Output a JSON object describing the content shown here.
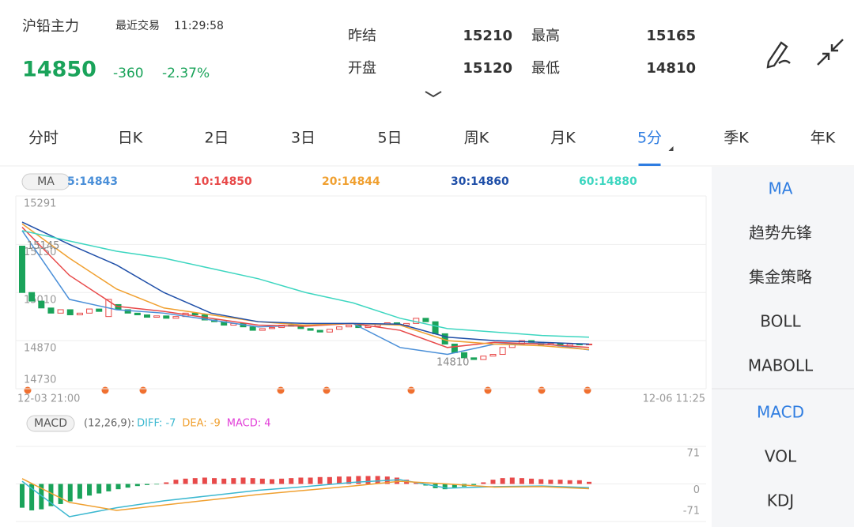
{
  "header": {
    "name": "沪铅主力",
    "recent_label": "最近交易",
    "time": "11:29:58",
    "price": "14850",
    "change": "-360",
    "change_pct": "-2.37%",
    "stats": [
      {
        "label": "昨结",
        "value": "15210"
      },
      {
        "label": "开盘",
        "value": "15120"
      },
      {
        "label": "最高",
        "value": "15165"
      },
      {
        "label": "最低",
        "value": "14810"
      }
    ]
  },
  "tabs": [
    "分时",
    "日K",
    "2日",
    "3日",
    "5日",
    "周K",
    "月K",
    "5分",
    "季K",
    "年K"
  ],
  "active_tab": 7,
  "indicators": {
    "main": [
      "MA",
      "趋势先锋",
      "集金策略",
      "BOLL",
      "MABOLL"
    ],
    "sub": [
      "MACD",
      "VOL",
      "KDJ"
    ],
    "active_color": "#2f7de1"
  },
  "chart_data": [
    {
      "type": "candlestick",
      "badge": "MA",
      "up_color": "#e84a4a",
      "down_color": "#1aa35a",
      "x_start": "12-03 21:00",
      "x_end": "12-06 11:25",
      "ylim": [
        14730,
        15291
      ],
      "yticks": [
        15291,
        15150,
        15010,
        14870,
        14730
      ],
      "grid": true,
      "annotations": [
        {
          "text": "15145",
          "value": 15145
        },
        {
          "text": "14810",
          "value": 14810
        }
      ],
      "open": [
        15145,
        15010,
        14985,
        14965,
        14950,
        14960,
        14945,
        14950,
        14962,
        14940,
        14975,
        14960,
        14950,
        14945,
        14938,
        14942,
        14935,
        14940,
        14950,
        14945,
        14930,
        14925,
        14915,
        14920,
        14910,
        14900,
        14905,
        14908,
        14915,
        14912,
        14905,
        14900,
        14895,
        14903,
        14910,
        14915,
        14908,
        14912,
        14918,
        14922,
        14915,
        14920,
        14935,
        14925,
        14890,
        14860,
        14835,
        14820,
        14815,
        14825,
        14830,
        14850,
        14860,
        14870,
        14865,
        14858,
        14862,
        14855,
        14860,
        14858
      ],
      "close": [
        15010,
        14985,
        14965,
        14950,
        14960,
        14945,
        14950,
        14962,
        14955,
        14990,
        14960,
        14950,
        14945,
        14938,
        14942,
        14935,
        14940,
        14950,
        14945,
        14930,
        14925,
        14915,
        14920,
        14910,
        14900,
        14905,
        14908,
        14915,
        14912,
        14905,
        14900,
        14895,
        14903,
        14910,
        14915,
        14908,
        14912,
        14918,
        14922,
        14915,
        14920,
        14935,
        14925,
        14890,
        14860,
        14835,
        14820,
        14815,
        14825,
        14830,
        14850,
        14860,
        14870,
        14865,
        14858,
        14862,
        14855,
        14860,
        14858,
        14860
      ],
      "series": [
        {
          "name": "5:14843",
          "color": "#4a8fd8",
          "values": [
            15190,
            14990,
            14960,
            14950,
            14930,
            14910,
            14915,
            14920,
            14850,
            14830,
            14860,
            14862,
            14843
          ]
        },
        {
          "name": "10:14850",
          "color": "#e84a4a",
          "values": [
            15200,
            15060,
            14970,
            14955,
            14935,
            14915,
            14912,
            14920,
            14900,
            14850,
            14865,
            14860,
            14850
          ]
        },
        {
          "name": "20:14844",
          "color": "#f0a030",
          "values": [
            15210,
            15110,
            15020,
            14965,
            14945,
            14925,
            14915,
            14920,
            14915,
            14870,
            14860,
            14855,
            14844
          ]
        },
        {
          "name": "30:14860",
          "color": "#1f4fa8",
          "values": [
            15215,
            15150,
            15090,
            15010,
            14950,
            14925,
            14920,
            14920,
            14918,
            14880,
            14870,
            14865,
            14860
          ]
        },
        {
          "name": "60:14880",
          "color": "#3dd6c0",
          "values": [
            15190,
            15160,
            15130,
            15110,
            15080,
            15050,
            15010,
            14980,
            14935,
            14905,
            14895,
            14885,
            14880
          ]
        }
      ]
    },
    {
      "type": "macd",
      "badge": "MACD",
      "params": "(12,26,9):",
      "ylim": [
        -71,
        71
      ],
      "yticks": [
        71,
        0,
        -71
      ],
      "series": [
        {
          "name": "DIFF: -7",
          "color": "#3cb8d0",
          "values": [
            5,
            -62,
            -45,
            -32,
            -22,
            -12,
            -5,
            3,
            8,
            -8,
            -5,
            -4,
            -7
          ]
        },
        {
          "name": "DEA: -9",
          "color": "#f0a030",
          "values": [
            10,
            -35,
            -50,
            -40,
            -30,
            -20,
            -12,
            -4,
            5,
            0,
            -6,
            -5,
            -9
          ]
        },
        {
          "name": "MACD: 4",
          "color": "#e23fd8",
          "up_color": "#e84a4a",
          "down_color": "#1aa35a",
          "values": [
            -45,
            -50,
            -48,
            -42,
            -38,
            -33,
            -28,
            -22,
            -18,
            -14,
            -10,
            -7,
            -4,
            -2,
            -1,
            3,
            8,
            10,
            11,
            12,
            11,
            10,
            11,
            12,
            11,
            10,
            9,
            10,
            11,
            12,
            12,
            13,
            13,
            14,
            14,
            15,
            15,
            15,
            14,
            12,
            8,
            3,
            -3,
            -8,
            -10,
            -8,
            -5,
            -2,
            3,
            8,
            11,
            12,
            11,
            10,
            9,
            8,
            8,
            7,
            7,
            4
          ]
        }
      ]
    }
  ]
}
